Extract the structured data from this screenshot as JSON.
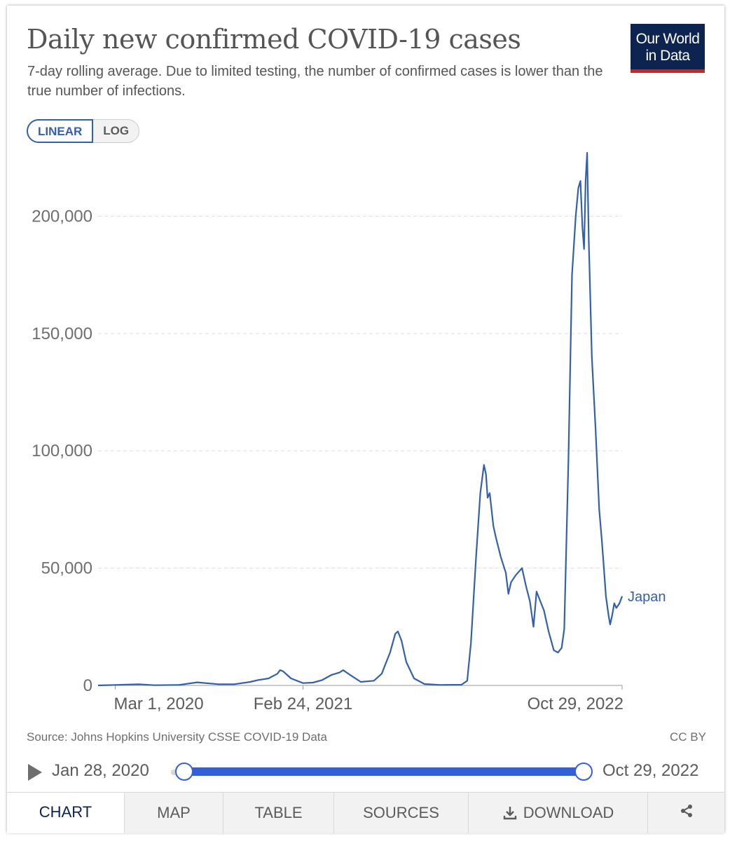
{
  "header": {
    "title": "Daily new confirmed COVID-19 cases",
    "subtitle": "7-day rolling average. Due to limited testing, the number of confirmed cases is lower than the true number of infections.",
    "logo_line1": "Our World",
    "logo_line2": "in Data"
  },
  "scale_toggle": {
    "linear_label": "LINEAR",
    "log_label": "LOG",
    "selected": "LINEAR"
  },
  "footer": {
    "source_prefix": "Source: ",
    "source_name": "Johns Hopkins University CSSE COVID-19 Data",
    "license": "CC BY"
  },
  "timeline": {
    "start_label": "Jan 28, 2020",
    "end_label": "Oct 29, 2022"
  },
  "tabs": {
    "chart": "CHART",
    "map": "MAP",
    "table": "TABLE",
    "sources": "SOURCES",
    "download": "DOWNLOAD"
  },
  "icons": {
    "play": "play-icon",
    "download": "download-icon",
    "share": "share-icon"
  },
  "colors": {
    "series": "#3360a9",
    "brand": "#0d2451",
    "brand_accent": "#ce261e",
    "slider": "#3360d8"
  },
  "chart_data": {
    "type": "line",
    "title": "Daily new confirmed COVID-19 cases",
    "scale": "linear",
    "x_range": [
      "2020-01-28",
      "2022-10-29"
    ],
    "ylim": [
      0,
      230000
    ],
    "y_ticks": [
      0,
      50000,
      100000,
      150000,
      200000
    ],
    "y_tick_labels": [
      "0",
      "50,000",
      "100,000",
      "150,000",
      "200,000"
    ],
    "x_ticks": [
      "2020-03-01",
      "2021-02-24",
      "2022-10-29"
    ],
    "x_tick_labels": [
      "Mar 1, 2020",
      "Feb 24, 2021",
      "Oct 29, 2022"
    ],
    "grid": "horizontal dashed",
    "series": [
      {
        "name": "Japan",
        "points": [
          [
            "2020-01-28",
            0
          ],
          [
            "2020-03-01",
            200
          ],
          [
            "2020-04-15",
            500
          ],
          [
            "2020-05-15",
            100
          ],
          [
            "2020-07-01",
            200
          ],
          [
            "2020-08-05",
            1300
          ],
          [
            "2020-09-15",
            500
          ],
          [
            "2020-10-15",
            500
          ],
          [
            "2020-11-15",
            1500
          ],
          [
            "2020-11-30",
            2300
          ],
          [
            "2020-12-20",
            3000
          ],
          [
            "2021-01-06",
            5000
          ],
          [
            "2021-01-11",
            6500
          ],
          [
            "2021-01-17",
            6000
          ],
          [
            "2021-02-01",
            3000
          ],
          [
            "2021-02-24",
            1000
          ],
          [
            "2021-03-15",
            1200
          ],
          [
            "2021-04-01",
            2200
          ],
          [
            "2021-04-20",
            4500
          ],
          [
            "2021-05-05",
            5500
          ],
          [
            "2021-05-12",
            6500
          ],
          [
            "2021-05-25",
            4500
          ],
          [
            "2021-06-15",
            1500
          ],
          [
            "2021-07-10",
            2000
          ],
          [
            "2021-07-25",
            5000
          ],
          [
            "2021-08-01",
            9000
          ],
          [
            "2021-08-10",
            14000
          ],
          [
            "2021-08-20",
            22000
          ],
          [
            "2021-08-25",
            23000
          ],
          [
            "2021-09-01",
            19000
          ],
          [
            "2021-09-10",
            10000
          ],
          [
            "2021-09-25",
            3000
          ],
          [
            "2021-10-15",
            600
          ],
          [
            "2021-11-15",
            200
          ],
          [
            "2021-12-25",
            300
          ],
          [
            "2022-01-05",
            2000
          ],
          [
            "2022-01-12",
            18000
          ],
          [
            "2022-01-22",
            55000
          ],
          [
            "2022-01-30",
            82000
          ],
          [
            "2022-02-06",
            94000
          ],
          [
            "2022-02-10",
            90000
          ],
          [
            "2022-02-13",
            80000
          ],
          [
            "2022-02-17",
            82000
          ],
          [
            "2022-02-24",
            68000
          ],
          [
            "2022-03-01",
            63000
          ],
          [
            "2022-03-10",
            55000
          ],
          [
            "2022-03-20",
            48000
          ],
          [
            "2022-03-25",
            39000
          ],
          [
            "2022-03-30",
            44000
          ],
          [
            "2022-04-08",
            47000
          ],
          [
            "2022-04-20",
            50000
          ],
          [
            "2022-04-28",
            42000
          ],
          [
            "2022-05-05",
            36000
          ],
          [
            "2022-05-12",
            25000
          ],
          [
            "2022-05-18",
            40000
          ],
          [
            "2022-05-25",
            36000
          ],
          [
            "2022-06-01",
            32000
          ],
          [
            "2022-06-10",
            23000
          ],
          [
            "2022-06-20",
            15000
          ],
          [
            "2022-06-28",
            14000
          ],
          [
            "2022-07-05",
            16000
          ],
          [
            "2022-07-10",
            24000
          ],
          [
            "2022-07-18",
            95000
          ],
          [
            "2022-07-25",
            175000
          ],
          [
            "2022-08-01",
            200000
          ],
          [
            "2022-08-06",
            212000
          ],
          [
            "2022-08-10",
            215000
          ],
          [
            "2022-08-14",
            195000
          ],
          [
            "2022-08-17",
            186000
          ],
          [
            "2022-08-20",
            215000
          ],
          [
            "2022-08-23",
            227000
          ],
          [
            "2022-08-26",
            190000
          ],
          [
            "2022-09-01",
            140000
          ],
          [
            "2022-09-08",
            110000
          ],
          [
            "2022-09-15",
            75000
          ],
          [
            "2022-09-20",
            62000
          ],
          [
            "2022-09-24",
            50000
          ],
          [
            "2022-09-28",
            38000
          ],
          [
            "2022-10-03",
            30000
          ],
          [
            "2022-10-06",
            26000
          ],
          [
            "2022-10-10",
            30000
          ],
          [
            "2022-10-14",
            35000
          ],
          [
            "2022-10-18",
            33000
          ],
          [
            "2022-10-24",
            35000
          ],
          [
            "2022-10-29",
            38000
          ]
        ]
      }
    ]
  }
}
